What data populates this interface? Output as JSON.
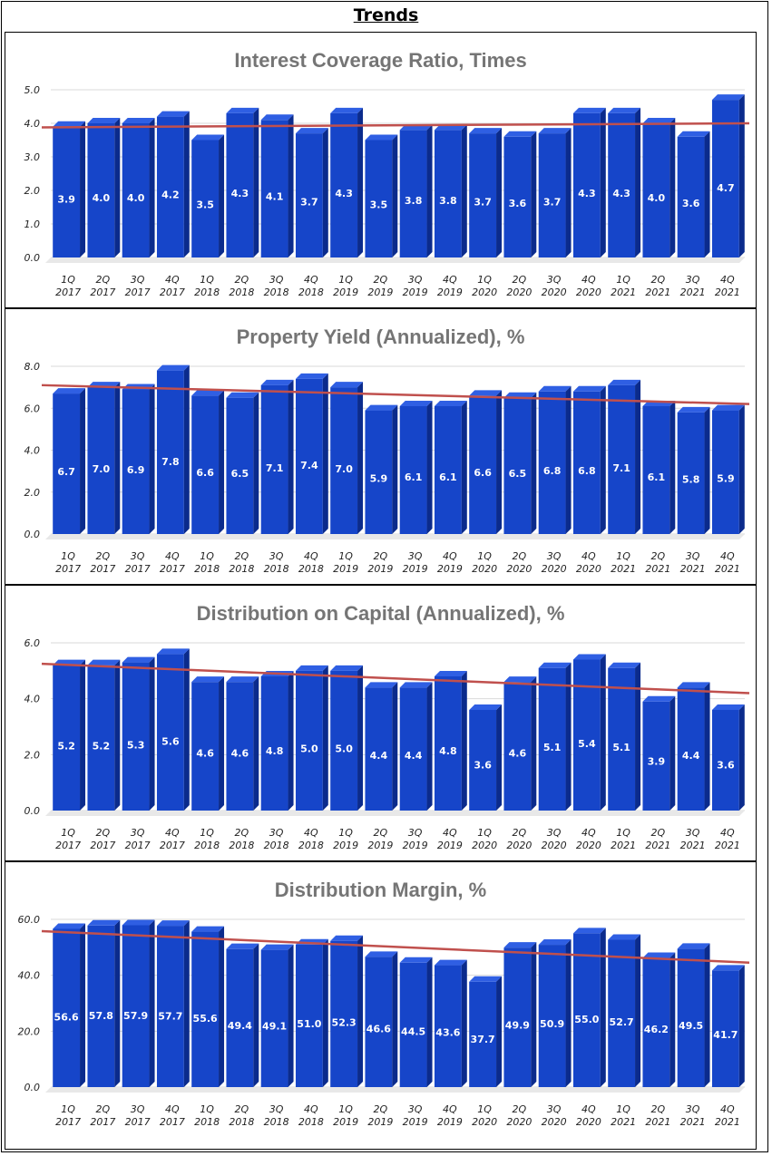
{
  "page_title": "Trends",
  "colors": {
    "bar_front": "#1645c9",
    "bar_side": "#0b2b8c",
    "bar_top": "#2f5fe3",
    "trend": "#c0504d",
    "grid": "#d9d9d9"
  },
  "chart_data": [
    {
      "type": "bar",
      "title": "Interest Coverage Ratio, Times",
      "categories": [
        "1Q 2017",
        "2Q 2017",
        "3Q 2017",
        "4Q 2017",
        "1Q 2018",
        "2Q 2018",
        "3Q 2018",
        "4Q 2018",
        "1Q 2019",
        "2Q 2019",
        "3Q 2019",
        "4Q 2019",
        "1Q 2020",
        "2Q 2020",
        "3Q 2020",
        "4Q 2020",
        "1Q 2021",
        "2Q 2021",
        "3Q 2021",
        "4Q 2021"
      ],
      "values": [
        3.9,
        4.0,
        4.0,
        4.2,
        3.5,
        4.3,
        4.1,
        3.7,
        4.3,
        3.5,
        3.8,
        3.8,
        3.7,
        3.6,
        3.7,
        4.3,
        4.3,
        4.0,
        3.6,
        4.7
      ],
      "labels": [
        "3.9",
        "4.0",
        "4.0",
        "4.2",
        "3.5",
        "4.3",
        "4.1",
        "3.7",
        "4.3",
        "3.5",
        "3.8",
        "3.8",
        "3.7",
        "3.6",
        "3.7",
        "4.3",
        "4.3",
        "4.0",
        "3.6",
        "4.7"
      ],
      "yticks": [
        "0.0",
        "1.0",
        "2.0",
        "3.0",
        "4.0",
        "5.0"
      ],
      "ylim": [
        0,
        5
      ],
      "trendline": [
        3.88,
        4.0
      ],
      "xlabel": "",
      "ylabel": ""
    },
    {
      "type": "bar",
      "title": "Property Yield (Annualized), %",
      "categories": [
        "1Q 2017",
        "2Q 2017",
        "3Q 2017",
        "4Q 2017",
        "1Q 2018",
        "2Q 2018",
        "3Q 2018",
        "4Q 2018",
        "1Q 2019",
        "2Q 2019",
        "3Q 2019",
        "4Q 2019",
        "1Q 2020",
        "2Q 2020",
        "3Q 2020",
        "4Q 2020",
        "1Q 2021",
        "2Q 2021",
        "3Q 2021",
        "4Q 2021"
      ],
      "values": [
        6.7,
        7.0,
        6.9,
        7.8,
        6.6,
        6.5,
        7.1,
        7.4,
        7.0,
        5.9,
        6.1,
        6.1,
        6.6,
        6.5,
        6.8,
        6.8,
        7.1,
        6.1,
        5.8,
        5.9
      ],
      "labels": [
        "6.7",
        "7.0",
        "6.9",
        "7.8",
        "6.6",
        "6.5",
        "7.1",
        "7.4",
        "7.0",
        "5.9",
        "6.1",
        "6.1",
        "6.6",
        "6.5",
        "6.8",
        "6.8",
        "7.1",
        "6.1",
        "5.8",
        "5.9"
      ],
      "yticks": [
        "0.0",
        "2.0",
        "4.0",
        "6.0",
        "8.0"
      ],
      "ylim": [
        0,
        8
      ],
      "trendline": [
        7.1,
        6.2
      ],
      "xlabel": "",
      "ylabel": ""
    },
    {
      "type": "bar",
      "title": "Distribution on Capital (Annualized), %",
      "categories": [
        "1Q 2017",
        "2Q 2017",
        "3Q 2017",
        "4Q 2017",
        "1Q 2018",
        "2Q 2018",
        "3Q 2018",
        "4Q 2018",
        "1Q 2019",
        "2Q 2019",
        "3Q 2019",
        "4Q 2019",
        "1Q 2020",
        "2Q 2020",
        "3Q 2020",
        "4Q 2020",
        "1Q 2021",
        "2Q 2021",
        "3Q 2021",
        "4Q 2021"
      ],
      "values": [
        5.2,
        5.2,
        5.3,
        5.6,
        4.6,
        4.6,
        4.8,
        5.0,
        5.0,
        4.4,
        4.4,
        4.8,
        3.6,
        4.6,
        5.1,
        5.4,
        5.1,
        3.9,
        4.4,
        3.6
      ],
      "labels": [
        "5.2",
        "5.2",
        "5.3",
        "5.6",
        "4.6",
        "4.6",
        "4.8",
        "5.0",
        "5.0",
        "4.4",
        "4.4",
        "4.8",
        "3.6",
        "4.6",
        "5.1",
        "5.4",
        "5.1",
        "3.9",
        "4.4",
        "3.6"
      ],
      "yticks": [
        "0.0",
        "2.0",
        "4.0",
        "6.0"
      ],
      "ylim": [
        0,
        6
      ],
      "trendline": [
        5.25,
        4.2
      ],
      "xlabel": "",
      "ylabel": ""
    },
    {
      "type": "bar",
      "title": "Distribution Margin, %",
      "categories": [
        "1Q 2017",
        "2Q 2017",
        "3Q 2017",
        "4Q 2017",
        "1Q 2018",
        "2Q 2018",
        "3Q 2018",
        "4Q 2018",
        "1Q 2019",
        "2Q 2019",
        "3Q 2019",
        "4Q 2019",
        "1Q 2020",
        "2Q 2020",
        "3Q 2020",
        "4Q 2020",
        "1Q 2021",
        "2Q 2021",
        "3Q 2021",
        "4Q 2021"
      ],
      "values": [
        56.6,
        57.8,
        57.9,
        57.7,
        55.6,
        49.4,
        49.1,
        51.0,
        52.3,
        46.6,
        44.5,
        43.6,
        37.7,
        49.9,
        50.9,
        55.0,
        52.7,
        46.2,
        49.5,
        41.7
      ],
      "labels": [
        "56.6",
        "57.8",
        "57.9",
        "57.7",
        "55.6",
        "49.4",
        "49.1",
        "51.0",
        "52.3",
        "46.6",
        "44.5",
        "43.6",
        "37.7",
        "49.9",
        "50.9",
        "55.0",
        "52.7",
        "46.2",
        "49.5",
        "41.7"
      ],
      "yticks": [
        "0.0",
        "20.0",
        "40.0",
        "60.0"
      ],
      "ylim": [
        0,
        60
      ],
      "trendline": [
        55.8,
        44.5
      ],
      "xlabel": "",
      "ylabel": ""
    }
  ]
}
